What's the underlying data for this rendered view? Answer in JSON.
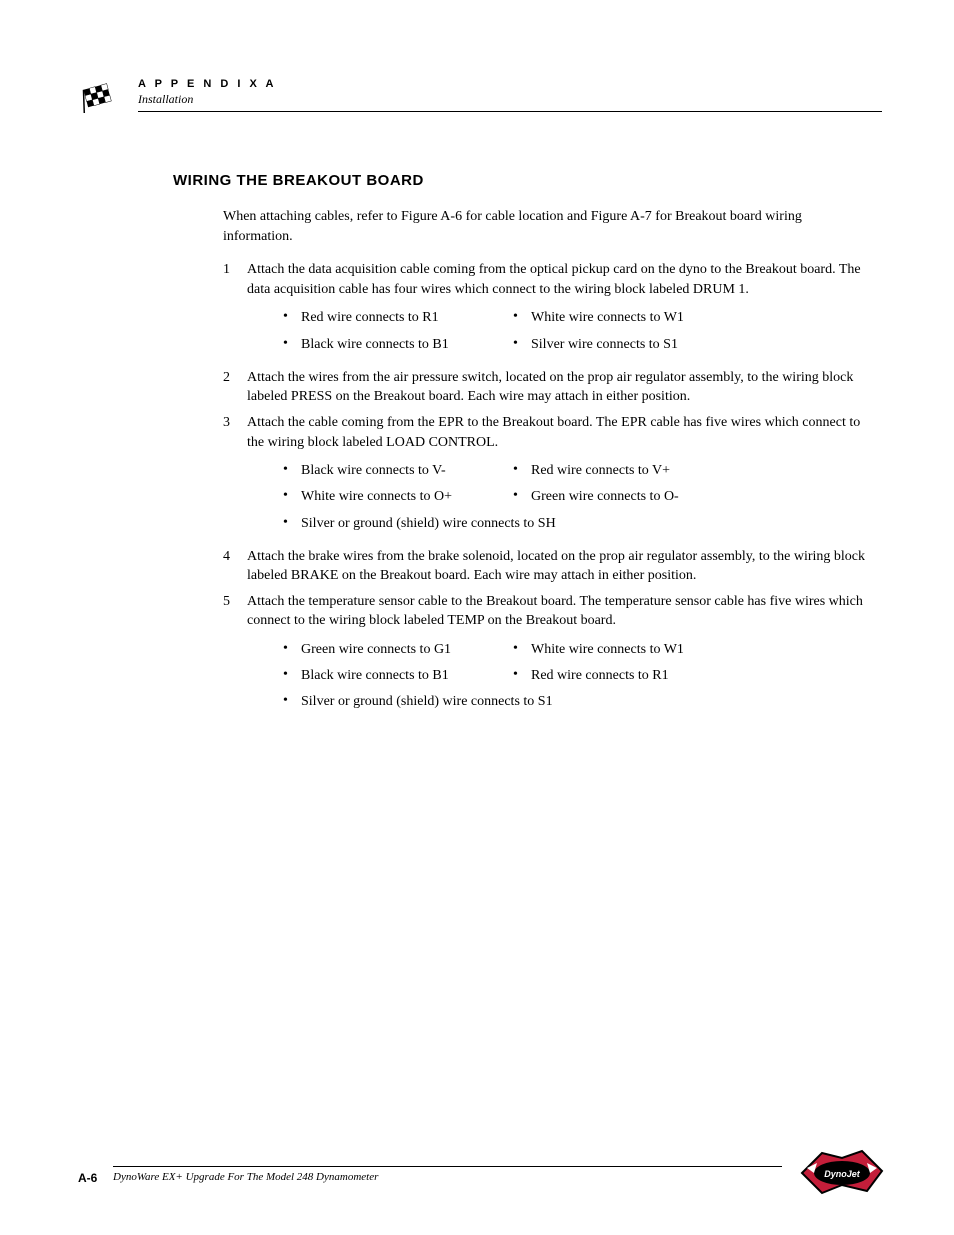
{
  "header": {
    "appendix_label": "A P P E N D I X A",
    "section_name": "Installation"
  },
  "section_title": "WIRING THE BREAKOUT BOARD",
  "intro": "When attaching cables, refer to Figure A-6 for cable location and Figure A-7 for Breakout board wiring information.",
  "steps": [
    {
      "num": "1",
      "text": "Attach the data acquisition cable coming from the optical pickup card on the dyno to the Breakout board. The data acquisition cable has four wires which connect to the wiring block labeled DRUM 1.",
      "bullets": [
        [
          "Red wire connects to R1",
          "White wire connects to W1"
        ],
        [
          "Black wire connects to B1",
          "Silver wire connects to S1"
        ]
      ]
    },
    {
      "num": "2",
      "text": "Attach the wires from the air pressure switch, located on the prop air regulator assembly, to the wiring block labeled PRESS on the Breakout board. Each wire may attach in either position."
    },
    {
      "num": "3",
      "text": "Attach the cable coming from the EPR to the Breakout board. The EPR cable has five wires which connect to the wiring block labeled LOAD CONTROL.",
      "bullets": [
        [
          "Black wire connects to V-",
          "Red wire connects to V+"
        ],
        [
          "White wire connects to O+",
          "Green wire connects to O-"
        ],
        [
          "Silver or ground (shield) wire connects to SH"
        ]
      ]
    },
    {
      "num": "4",
      "text": "Attach the brake wires from the brake solenoid, located on the prop air regulator assembly, to the wiring block labeled BRAKE on the Breakout board. Each wire may attach in either position."
    },
    {
      "num": "5",
      "text": "Attach the temperature sensor cable to the Breakout board. The temperature sensor cable has five wires which connect to the wiring block labeled TEMP on the Breakout board.",
      "bullets": [
        [
          "Green wire connects to G1",
          "White wire connects to W1"
        ],
        [
          "Black wire connects to B1",
          "Red wire connects to R1"
        ],
        [
          "Silver or ground (shield) wire connects to S1"
        ]
      ]
    }
  ],
  "footer": {
    "page_num": "A-6",
    "title": "DynoWare EX+ Upgrade For The Model 248 Dynamometer"
  },
  "colors": {
    "text": "#000000",
    "background": "#ffffff",
    "logo_red": "#c41e3a",
    "logo_black": "#000000",
    "flag_black": "#000000",
    "flag_white": "#ffffff"
  }
}
